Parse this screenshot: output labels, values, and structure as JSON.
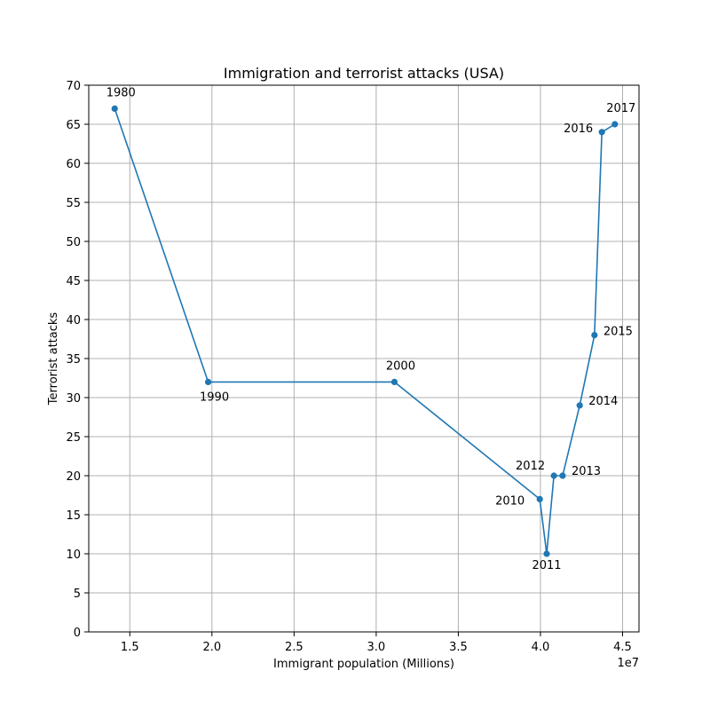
{
  "chart_data": {
    "type": "line",
    "title": "Immigration and terrorist attacks (USA)",
    "xlabel": "Immigrant population (Millions)",
    "ylabel": "Terrorist attacks",
    "x_offset_label": "1e7",
    "xlim": [
      12500000,
      46000000
    ],
    "ylim": [
      0,
      70
    ],
    "x_ticks": [
      15000000,
      20000000,
      25000000,
      30000000,
      35000000,
      40000000,
      45000000
    ],
    "x_tick_labels": [
      "1.5",
      "2.0",
      "2.5",
      "3.0",
      "3.5",
      "4.0",
      "4.5"
    ],
    "y_ticks": [
      0,
      5,
      10,
      15,
      20,
      25,
      30,
      35,
      40,
      45,
      50,
      55,
      60,
      65,
      70
    ],
    "y_tick_labels": [
      "0",
      "5",
      "10",
      "15",
      "20",
      "25",
      "30",
      "35",
      "40",
      "45",
      "50",
      "55",
      "60",
      "65",
      "70"
    ],
    "grid": true,
    "line_color": "#1f77b4",
    "marker": "circle",
    "series": [
      {
        "points": [
          {
            "label": "1980",
            "x": 14080000,
            "y": 67
          },
          {
            "label": "1990",
            "x": 19770000,
            "y": 32
          },
          {
            "label": "2000",
            "x": 31110000,
            "y": 32
          },
          {
            "label": "2010",
            "x": 39960000,
            "y": 17
          },
          {
            "label": "2011",
            "x": 40380000,
            "y": 10
          },
          {
            "label": "2012",
            "x": 40820000,
            "y": 20
          },
          {
            "label": "2013",
            "x": 41350000,
            "y": 20
          },
          {
            "label": "2014",
            "x": 42390000,
            "y": 29
          },
          {
            "label": "2015",
            "x": 43290000,
            "y": 38
          },
          {
            "label": "2016",
            "x": 43740000,
            "y": 64
          },
          {
            "label": "2017",
            "x": 44530000,
            "y": 65
          }
        ]
      }
    ]
  }
}
